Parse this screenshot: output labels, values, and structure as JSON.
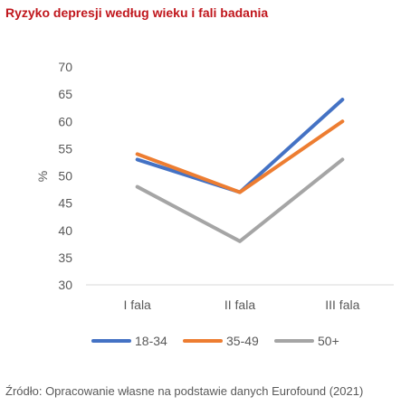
{
  "chart_data": {
    "type": "line",
    "title": "Ryzyko depresji według wieku i fali badania",
    "ylabel": "%",
    "xlabel": "",
    "categories": [
      "I fala",
      "II fala",
      "III fala"
    ],
    "ylim": [
      30,
      70
    ],
    "yticks": [
      "30",
      "35",
      "40",
      "45",
      "50",
      "55",
      "60",
      "65",
      "70"
    ],
    "grid": false,
    "legend_position": "bottom",
    "series": [
      {
        "name": "18-34",
        "values": [
          53,
          47,
          64
        ],
        "color": "#4472c4"
      },
      {
        "name": "35-49",
        "values": [
          54,
          47,
          60
        ],
        "color": "#ed7d31"
      },
      {
        "name": "50+",
        "values": [
          48,
          38,
          53
        ],
        "color": "#a5a5a5"
      }
    ]
  },
  "source": "Źródło: Opracowanie własne na podstawie danych Eurofound (2021)"
}
